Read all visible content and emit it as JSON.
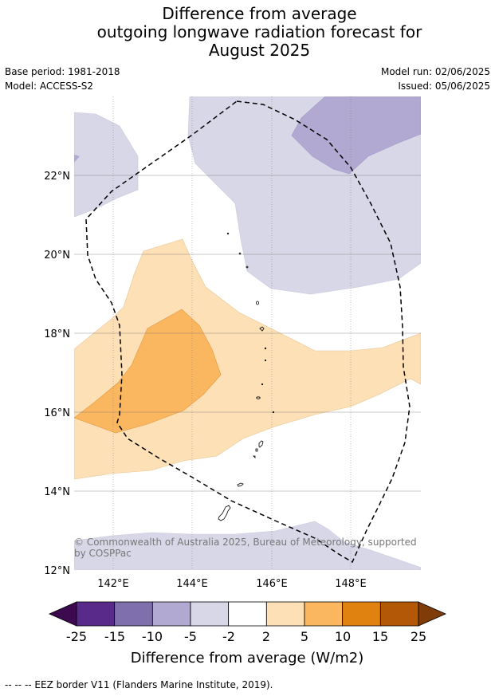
{
  "header": {
    "title_lines": [
      "Difference from average",
      "outgoing longwave radiation forecast for",
      "August 2025"
    ],
    "base_period": "Base period: 1981-2018",
    "model": "Model: ACCESS-S2",
    "model_run": "Model run: 02/06/2025",
    "issued": "Issued: 05/06/2025"
  },
  "map": {
    "lon_labels": [
      "142°E",
      "144°E",
      "146°E",
      "148°E"
    ],
    "lat_labels": [
      "22°N",
      "20°N",
      "18°N",
      "16°N",
      "14°N",
      "12°N"
    ],
    "copyright_line1": "© Commonwealth of Australia 2025, Bureau of Meteorology, supported",
    "copyright_line2": "by COSPPac"
  },
  "colorbar": {
    "tick_labels": [
      "-25",
      "-15",
      "-10",
      "-5",
      "-2",
      "2",
      "5",
      "10",
      "15",
      "25"
    ],
    "colors": [
      "#3d0a4f",
      "#5a2a8a",
      "#7f70ad",
      "#b1a9d1",
      "#d7d7e8",
      "#ffffff",
      "#fde0b6",
      "#fbb660",
      "#e0820f",
      "#b35806",
      "#7f3b08"
    ],
    "label": "Difference from average (W/m2)"
  },
  "footnote": "--  --  -- EEZ border V11 (Flanders Marine Institute, 2019)."
}
